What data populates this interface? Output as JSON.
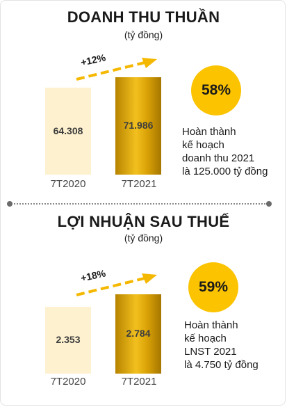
{
  "chart_data": [
    {
      "type": "bar",
      "title": "DOANH THU THUẦN",
      "subtitle": "(tỷ đồng)",
      "categories": [
        "7T2020",
        "7T2021"
      ],
      "values": [
        64308,
        71986
      ],
      "value_labels": [
        "64.308",
        "71.986"
      ],
      "growth_label": "+12%",
      "completion_label": "58%",
      "note_lines": [
        "Hoàn thành",
        "kế hoạch",
        "doanh thu 2021",
        "là 125.000 tỷ đồng"
      ],
      "colors": {
        "prev": "#fdf1cf",
        "curr": "#d9a106",
        "accent": "#fbc300",
        "arrow": "#f5b800"
      }
    },
    {
      "type": "bar",
      "title": "LỢI NHUẬN SAU THUẾ",
      "subtitle": "(tỷ đồng)",
      "categories": [
        "7T2020",
        "7T2021"
      ],
      "values": [
        2353,
        2784
      ],
      "value_labels": [
        "2.353",
        "2.784"
      ],
      "growth_label": "+18%",
      "completion_label": "59%",
      "note_lines": [
        "Hoàn thành",
        "kế hoạch",
        "LNST 2021",
        "là 4.750 tỷ đồng"
      ],
      "colors": {
        "prev": "#fdf1cf",
        "curr": "#d9a106",
        "accent": "#fbc300",
        "arrow": "#f5b800"
      }
    }
  ]
}
